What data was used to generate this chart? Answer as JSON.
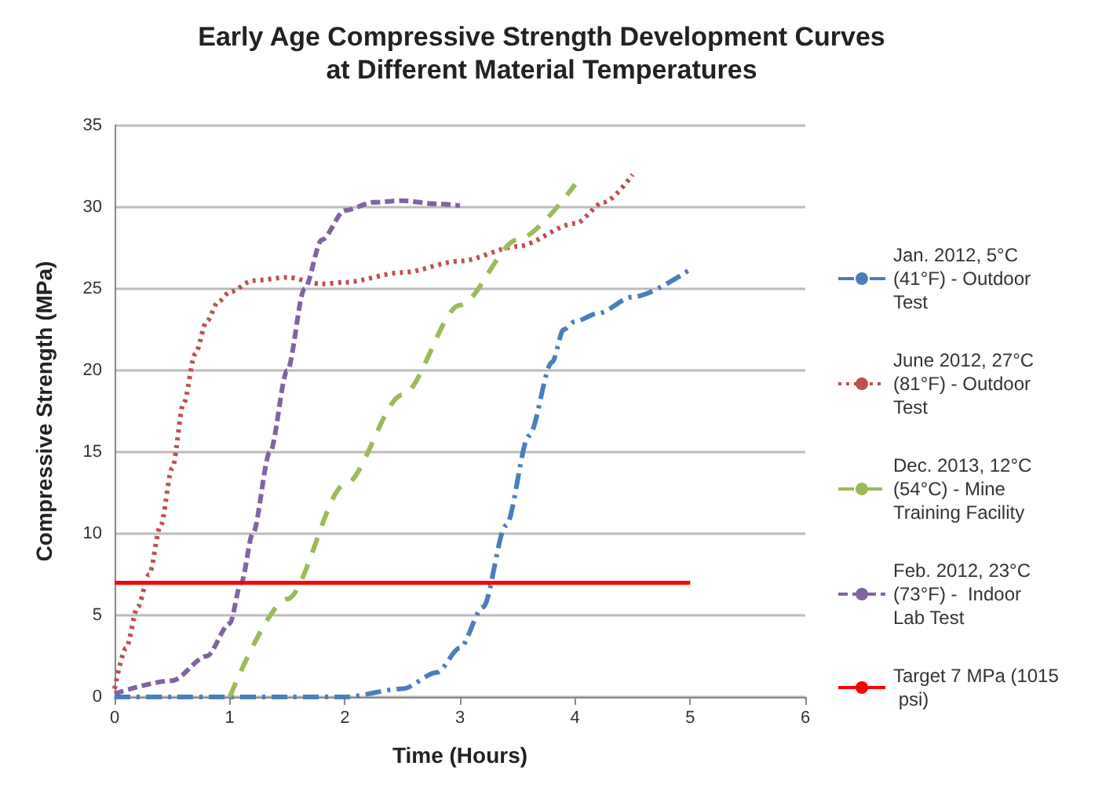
{
  "chart_data": {
    "type": "line",
    "title": "Early Age Compressive Strength Development Curves\nat Different Material Temperatures",
    "xlabel": "Time (Hours)",
    "ylabel": "Compressive Strength (MPa)",
    "xlim": [
      0,
      6
    ],
    "xticks": [
      0,
      1,
      2,
      3,
      4,
      5,
      6
    ],
    "ylim": [
      0,
      35
    ],
    "yticks": [
      0,
      5,
      10,
      15,
      20,
      25,
      30,
      35
    ],
    "grid": "y",
    "legend": "right",
    "marker": "none",
    "series": [
      {
        "name": "Jan. 2012, 5°C (41°F) - Outdoor Test",
        "color": "#4a7ebb",
        "line_style": "dashdot",
        "x": [
          0,
          0.5,
          1,
          1.5,
          2,
          2.5,
          2.8,
          3,
          3.2,
          3.4,
          3.6,
          3.8,
          3.9,
          4,
          4.2,
          4.5,
          5
        ],
        "values": [
          0,
          0,
          0,
          0,
          0,
          0.5,
          1.5,
          3,
          5.5,
          10.5,
          16,
          20.5,
          22.5,
          23,
          23.5,
          24.5,
          26.2
        ]
      },
      {
        "name": "June 2012, 27°C (81°F) - Outdoor Test",
        "color": "#c0504d",
        "line_style": "dotted",
        "x": [
          0,
          0.1,
          0.2,
          0.3,
          0.4,
          0.5,
          0.6,
          0.7,
          0.8,
          0.9,
          1,
          1.2,
          1.5,
          1.8,
          2,
          2.5,
          3,
          3.5,
          4,
          4.25,
          4.5
        ],
        "values": [
          0.5,
          3,
          5.5,
          7.5,
          10.5,
          14,
          18,
          21,
          23,
          24.2,
          24.8,
          25.5,
          25.7,
          25.3,
          25.4,
          26,
          26.7,
          27.6,
          29,
          30.3,
          32
        ]
      },
      {
        "name": "Dec. 2013, 12°C (54°C) - Mine Training Facility",
        "color": "#9bbb59",
        "line_style": "longdash",
        "x": [
          1,
          1.5,
          2,
          2.5,
          3,
          3.5,
          4
        ],
        "values": [
          0,
          6,
          13,
          18.5,
          24,
          28,
          31.4
        ]
      },
      {
        "name": "Feb. 2012, 23°C (73°F) -  Indoor Lab Test",
        "color": "#8064a2",
        "line_style": "dashed",
        "x": [
          0,
          0.5,
          0.8,
          1,
          1.1,
          1.2,
          1.35,
          1.5,
          1.65,
          1.8,
          2,
          2.25,
          2.5,
          2.8,
          3
        ],
        "values": [
          0.2,
          1,
          2.5,
          4.5,
          7,
          10,
          15,
          20,
          25,
          28,
          29.8,
          30.3,
          30.4,
          30.2,
          30.1
        ]
      },
      {
        "name": "Target 7 MPa (1015 psi)",
        "color": "#ff0000",
        "line_style": "solid",
        "x": [
          0,
          5
        ],
        "values": [
          7,
          7
        ]
      }
    ]
  }
}
